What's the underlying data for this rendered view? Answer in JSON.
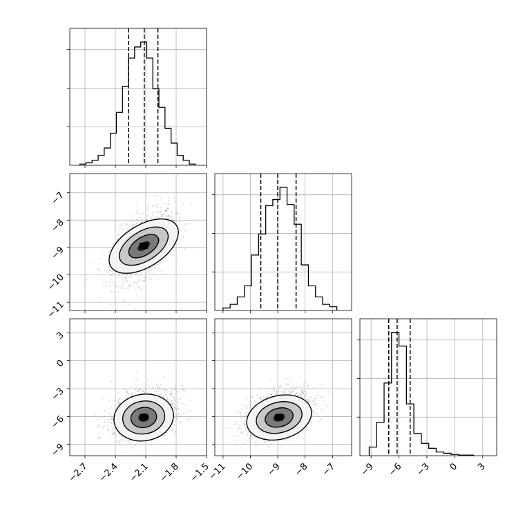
{
  "chart_data": {
    "type": "corner",
    "title": "",
    "parameters": [
      {
        "xlim": [
          -2.85,
          -1.5
        ],
        "xticks": [
          "−2.7",
          "−2.4",
          "−2.1",
          "−1.8",
          "−1.5"
        ],
        "xtick_values": [
          -2.7,
          -2.4,
          -2.1,
          -1.8,
          -1.5
        ]
      },
      {
        "xlim": [
          -11.3,
          -6.3
        ],
        "xticks": [
          "−11",
          "−10",
          "−9",
          "−8",
          "−7"
        ],
        "xtick_values": [
          -11,
          -10,
          -9,
          -8,
          -7
        ],
        "yticks": [
          "−7",
          "−8",
          "−9",
          "−10",
          "−11"
        ],
        "ytick_values": [
          -7,
          -8,
          -9,
          -10,
          -11
        ]
      },
      {
        "xlim": [
          -10.2,
          4.5
        ],
        "xticks": [
          "−9",
          "−6",
          "−3",
          "0",
          "3"
        ],
        "xtick_values": [
          -9,
          -6,
          -3,
          0,
          3
        ],
        "yticks": [
          "3",
          "0",
          "−3",
          "−6",
          "−9"
        ],
        "ytick_values": [
          3,
          0,
          -3,
          -6,
          -9
        ],
        "ylim": [
          -10.2,
          4.5
        ]
      }
    ],
    "grid": true,
    "histograms": [
      {
        "param": 0,
        "bin_edges": [
          -2.75,
          -2.69,
          -2.63,
          -2.57,
          -2.51,
          -2.45,
          -2.39,
          -2.33,
          -2.27,
          -2.21,
          -2.15,
          -2.09,
          -2.03,
          -1.97,
          -1.91,
          -1.85,
          -1.79,
          -1.73,
          -1.67,
          -1.61
        ],
        "counts": [
          0.01,
          0.02,
          0.04,
          0.08,
          0.14,
          0.26,
          0.43,
          0.64,
          0.87,
          0.96,
          1.0,
          0.87,
          0.62,
          0.47,
          0.3,
          0.18,
          0.08,
          0.04,
          0.01
        ],
        "quantiles": [
          -2.27,
          -2.115,
          -1.98
        ]
      },
      {
        "param": 1,
        "bin_edges": [
          -11.0,
          -10.74,
          -10.48,
          -10.22,
          -9.96,
          -9.7,
          -9.44,
          -9.18,
          -8.92,
          -8.66,
          -8.4,
          -8.14,
          -7.88,
          -7.62,
          -7.36,
          -7.1,
          -6.84
        ],
        "counts": [
          0.02,
          0.05,
          0.11,
          0.2,
          0.45,
          0.62,
          0.85,
          0.9,
          1.0,
          0.86,
          0.7,
          0.37,
          0.2,
          0.11,
          0.05,
          0.03
        ],
        "quantiles": [
          -9.62,
          -9.0,
          -8.33
        ]
      },
      {
        "param": 2,
        "bin_edges": [
          -9.2,
          -8.4,
          -7.6,
          -6.8,
          -6.0,
          -5.2,
          -4.4,
          -3.6,
          -2.8,
          -2.0,
          -1.2,
          -0.4,
          0.4,
          1.2,
          2.0
        ],
        "counts": [
          0.07,
          0.27,
          0.59,
          1.0,
          0.89,
          0.42,
          0.18,
          0.1,
          0.06,
          0.03,
          0.02,
          0.01,
          0.005,
          0.005
        ],
        "quantiles": [
          -7.1,
          -6.2,
          -4.8
        ]
      }
    ],
    "contours_2d": [
      {
        "x_param": 0,
        "y_param": 1,
        "center": [
          -2.12,
          -8.95
        ],
        "sigma": [
          0.13,
          0.55
        ],
        "correlation": 0.55
      },
      {
        "x_param": 0,
        "y_param": 2,
        "center": [
          -2.12,
          -6.1
        ],
        "sigma": [
          0.14,
          1.05
        ],
        "correlation": 0.25
      },
      {
        "x_param": 1,
        "y_param": 2,
        "center": [
          -8.95,
          -6.1
        ],
        "sigma": [
          0.55,
          1.05
        ],
        "correlation": 0.4
      }
    ],
    "colors": {
      "line": "#000000",
      "grid": "#b0b0b0",
      "points": "#a8a8a8"
    }
  }
}
